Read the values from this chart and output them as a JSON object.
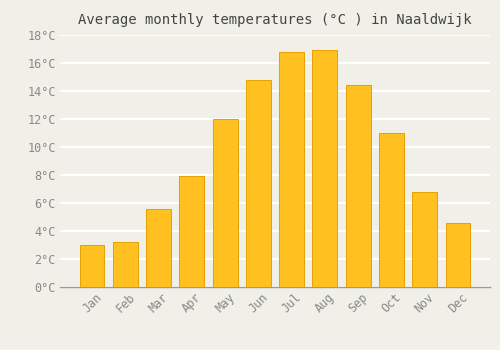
{
  "title": "Average monthly temperatures (°C ) in Naaldwijk",
  "months": [
    "Jan",
    "Feb",
    "Mar",
    "Apr",
    "May",
    "Jun",
    "Jul",
    "Aug",
    "Sep",
    "Oct",
    "Nov",
    "Dec"
  ],
  "temperatures": [
    3.0,
    3.2,
    5.6,
    7.9,
    12.0,
    14.8,
    16.8,
    16.9,
    14.4,
    11.0,
    6.8,
    4.6
  ],
  "bar_color": "#FFC020",
  "bar_edge_color": "#E8A000",
  "background_color": "#F0F0E8",
  "grid_color": "#FFFFFF",
  "ylim": [
    0,
    18
  ],
  "ytick_step": 2,
  "title_fontsize": 10,
  "tick_fontsize": 8.5,
  "tick_color": "#888888",
  "font_family": "monospace",
  "title_color": "#444444"
}
